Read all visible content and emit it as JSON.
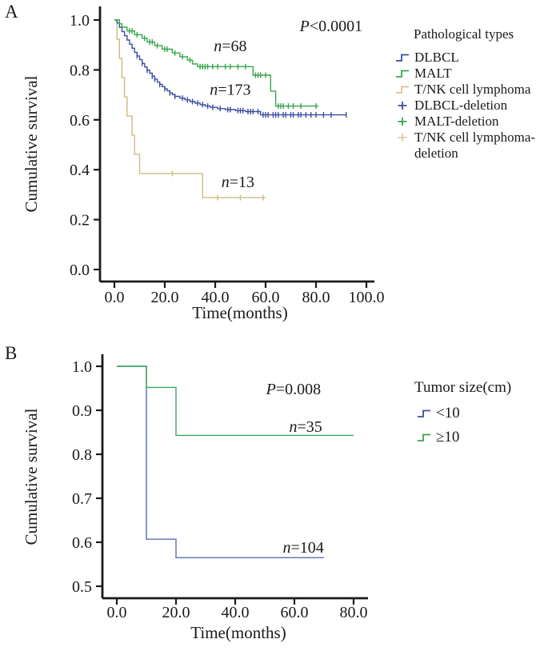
{
  "panels": {
    "a_label": "A",
    "b_label": "B"
  },
  "chart_data": [
    {
      "type": "line",
      "subtype": "kaplan-meier-step",
      "panel": "A",
      "xlabel": "Time(months)",
      "ylabel": "Cumulative survival",
      "xlim": [
        0,
        100
      ],
      "ylim": [
        0.0,
        1.0
      ],
      "grid": false,
      "legend_position": "right",
      "xticks": {
        "values": [
          0,
          20,
          40,
          60,
          80,
          100
        ],
        "labels": [
          "0.0",
          "20.0",
          "40.0",
          "60.0",
          "80.0",
          "100.0"
        ]
      },
      "yticks": {
        "values": [
          0,
          0.2,
          0.4,
          0.6,
          0.8,
          1.0
        ],
        "labels": [
          "0.0",
          "0.2",
          "0.4",
          "0.6",
          "0.8",
          "1.0"
        ]
      },
      "series": [
        {
          "name": "T/NK cell lymphoma",
          "n": 13,
          "color": "#cfbb7d",
          "steps": [
            [
              0,
              1.0
            ],
            [
              1,
              0.923
            ],
            [
              2,
              0.846
            ],
            [
              3,
              0.769
            ],
            [
              4,
              0.692
            ],
            [
              5,
              0.615
            ],
            [
              7,
              0.538
            ],
            [
              8,
              0.462
            ],
            [
              10,
              0.385
            ],
            [
              35,
              0.288
            ],
            [
              60,
              0.288
            ]
          ],
          "censors": [
            [
              23,
              0.385
            ],
            [
              41,
              0.288
            ],
            [
              50,
              0.288
            ],
            [
              59,
              0.288
            ]
          ]
        },
        {
          "name": "DLBCL",
          "n": 173,
          "color": "#3c4fa1",
          "steps": [
            [
              0,
              1.0
            ],
            [
              1,
              0.988
            ],
            [
              2,
              0.971
            ],
            [
              3,
              0.954
            ],
            [
              4,
              0.937
            ],
            [
              5,
              0.92
            ],
            [
              6,
              0.903
            ],
            [
              7,
              0.887
            ],
            [
              8,
              0.87
            ],
            [
              9,
              0.856
            ],
            [
              10,
              0.841
            ],
            [
              11,
              0.826
            ],
            [
              12,
              0.812
            ],
            [
              13,
              0.799
            ],
            [
              14,
              0.787
            ],
            [
              15,
              0.775
            ],
            [
              16,
              0.763
            ],
            [
              17,
              0.751
            ],
            [
              18,
              0.742
            ],
            [
              19,
              0.733
            ],
            [
              20,
              0.724
            ],
            [
              21,
              0.716
            ],
            [
              22,
              0.708
            ],
            [
              23,
              0.701
            ],
            [
              24,
              0.694
            ],
            [
              26,
              0.687
            ],
            [
              28,
              0.68
            ],
            [
              30,
              0.673
            ],
            [
              32,
              0.667
            ],
            [
              34,
              0.661
            ],
            [
              36,
              0.655
            ],
            [
              38,
              0.65
            ],
            [
              41,
              0.645
            ],
            [
              44,
              0.641
            ],
            [
              48,
              0.637
            ],
            [
              52,
              0.633
            ],
            [
              58,
              0.62
            ],
            [
              92,
              0.62
            ]
          ],
          "censors": [
            [
              9,
              0.856
            ],
            [
              11,
              0.826
            ],
            [
              13,
              0.799
            ],
            [
              15,
              0.775
            ],
            [
              16,
              0.763
            ],
            [
              18,
              0.742
            ],
            [
              20,
              0.724
            ],
            [
              22,
              0.708
            ],
            [
              24,
              0.694
            ],
            [
              27,
              0.687
            ],
            [
              29,
              0.68
            ],
            [
              31,
              0.673
            ],
            [
              33,
              0.667
            ],
            [
              35,
              0.661
            ],
            [
              37,
              0.655
            ],
            [
              39,
              0.65
            ],
            [
              42,
              0.645
            ],
            [
              45,
              0.641
            ],
            [
              46,
              0.641
            ],
            [
              49,
              0.637
            ],
            [
              50,
              0.637
            ],
            [
              51,
              0.637
            ],
            [
              53,
              0.633
            ],
            [
              54,
              0.633
            ],
            [
              55,
              0.633
            ],
            [
              57,
              0.633
            ],
            [
              59,
              0.62
            ],
            [
              60,
              0.62
            ],
            [
              61,
              0.62
            ],
            [
              63,
              0.62
            ],
            [
              64,
              0.62
            ],
            [
              65,
              0.62
            ],
            [
              67,
              0.62
            ],
            [
              68,
              0.62
            ],
            [
              70,
              0.62
            ],
            [
              71,
              0.62
            ],
            [
              73,
              0.62
            ],
            [
              74,
              0.62
            ],
            [
              76,
              0.62
            ],
            [
              78,
              0.62
            ],
            [
              80,
              0.62
            ],
            [
              83,
              0.62
            ],
            [
              86,
              0.62
            ],
            [
              92,
              0.62
            ]
          ]
        },
        {
          "name": "MALT",
          "n": 68,
          "color": "#38a64c",
          "steps": [
            [
              0,
              1.0
            ],
            [
              2,
              0.985
            ],
            [
              3,
              0.971
            ],
            [
              5,
              0.956
            ],
            [
              8,
              0.941
            ],
            [
              11,
              0.927
            ],
            [
              13,
              0.912
            ],
            [
              16,
              0.897
            ],
            [
              19,
              0.883
            ],
            [
              23,
              0.868
            ],
            [
              26,
              0.853
            ],
            [
              29,
              0.839
            ],
            [
              31,
              0.824
            ],
            [
              33,
              0.813
            ],
            [
              55,
              0.779
            ],
            [
              62,
              0.715
            ],
            [
              64,
              0.655
            ],
            [
              81,
              0.655
            ]
          ],
          "censors": [
            [
              6,
              0.956
            ],
            [
              7,
              0.956
            ],
            [
              9,
              0.941
            ],
            [
              12,
              0.927
            ],
            [
              14,
              0.912
            ],
            [
              15,
              0.912
            ],
            [
              17,
              0.897
            ],
            [
              20,
              0.883
            ],
            [
              21,
              0.883
            ],
            [
              24,
              0.868
            ],
            [
              27,
              0.853
            ],
            [
              30,
              0.839
            ],
            [
              34,
              0.813
            ],
            [
              35,
              0.813
            ],
            [
              36,
              0.813
            ],
            [
              37,
              0.813
            ],
            [
              39,
              0.813
            ],
            [
              41,
              0.813
            ],
            [
              44,
              0.813
            ],
            [
              46,
              0.813
            ],
            [
              49,
              0.813
            ],
            [
              52,
              0.813
            ],
            [
              56,
              0.779
            ],
            [
              57,
              0.779
            ],
            [
              58,
              0.779
            ],
            [
              60,
              0.779
            ],
            [
              65,
              0.655
            ],
            [
              66,
              0.655
            ],
            [
              67,
              0.655
            ],
            [
              69,
              0.655
            ],
            [
              71,
              0.655
            ],
            [
              74,
              0.655
            ],
            [
              80,
              0.655
            ]
          ]
        }
      ],
      "annotations": [
        {
          "italic": "P",
          "rest": "<0.0001",
          "x": 86,
          "y": 0.955,
          "size": 21
        },
        {
          "italic": "n",
          "rest": "=68",
          "x": 46,
          "y": 0.875,
          "size": 20
        },
        {
          "italic": "n",
          "rest": "=173",
          "x": 46,
          "y": 0.7,
          "size": 20
        },
        {
          "italic": "n",
          "rest": "=13",
          "x": 49,
          "y": 0.33,
          "size": 20
        }
      ],
      "legend": {
        "title": "Pathological types",
        "items": [
          {
            "label": "DLBCL",
            "marker": "step",
            "color": "#3c4fa1"
          },
          {
            "label": "MALT",
            "marker": "step",
            "color": "#38a64c"
          },
          {
            "label": "T/NK cell lymphoma",
            "marker": "step",
            "color": "#dcc393"
          },
          {
            "label": "DLBCL-deletion",
            "marker": "plus",
            "color": "#3c4fa1"
          },
          {
            "label": "MALT-deletion",
            "marker": "plus",
            "color": "#38a64c"
          },
          {
            "label": "T/NK cell lymphoma-deletion",
            "marker": "plus",
            "color": "#e6c8a2"
          }
        ]
      }
    },
    {
      "type": "line",
      "subtype": "kaplan-meier-step",
      "panel": "B",
      "xlabel": "Time(months)",
      "ylabel": "Cumulative survival",
      "xlim": [
        0,
        80
      ],
      "ylim": [
        0.5,
        1.0
      ],
      "grid": false,
      "legend_position": "right",
      "xticks": {
        "values": [
          0,
          20,
          40,
          60,
          80
        ],
        "labels": [
          "0.0",
          "20.0",
          "40.0",
          "60.0",
          "80.0"
        ]
      },
      "yticks": {
        "values": [
          0.5,
          0.6,
          0.7,
          0.8,
          0.9,
          1.0
        ],
        "labels": [
          "0.5",
          "0.6",
          "0.7",
          "0.8",
          "0.9",
          "1.0"
        ]
      },
      "series": [
        {
          "name": "<10",
          "n": 104,
          "color": "#5c6fb5",
          "steps": [
            [
              0,
              1.0
            ],
            [
              10,
              0.607
            ],
            [
              20,
              0.565
            ],
            [
              70,
              0.565
            ]
          ],
          "censors": []
        },
        {
          "name": "≥10",
          "n": 35,
          "color": "#3aa75e",
          "steps": [
            [
              0,
              1.0
            ],
            [
              10,
              0.952
            ],
            [
              20,
              0.843
            ],
            [
              80,
              0.843
            ]
          ],
          "censors": []
        }
      ],
      "annotations": [
        {
          "italic": "P",
          "rest": "=0.008",
          "x": 59.7,
          "y": 0.936,
          "size": 21
        },
        {
          "italic": "n",
          "rest": "=35",
          "x": 63.8,
          "y": 0.851,
          "size": 20
        },
        {
          "italic": "n",
          "rest": "=104",
          "x": 63.0,
          "y": 0.576,
          "size": 20
        }
      ],
      "legend": {
        "title": "Tumor size(cm)",
        "items": [
          {
            "label": "<10",
            "marker": "step",
            "color": "#3c4fa1"
          },
          {
            "label": "≥10",
            "marker": "step",
            "color": "#38a64c"
          }
        ]
      }
    }
  ]
}
